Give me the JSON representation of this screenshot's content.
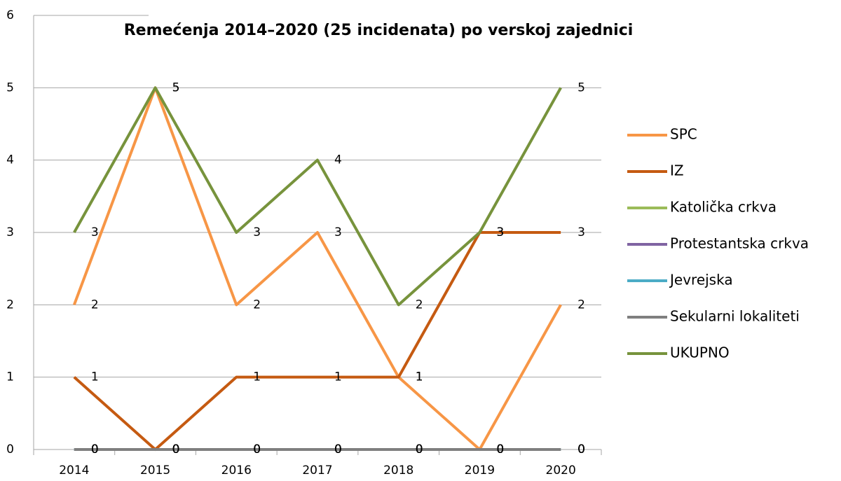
{
  "chart_data": {
    "type": "line",
    "title": "Remećenja 2014–2020 (25 incidenata) po verskoj zajednici",
    "categories": [
      "2014",
      "2015",
      "2016",
      "2017",
      "2018",
      "2019",
      "2020"
    ],
    "series": [
      {
        "name": "SPC",
        "color": "#f79646",
        "values": [
          2,
          5,
          2,
          3,
          1,
          0,
          2
        ]
      },
      {
        "name": "IZ",
        "color": "#c55a11",
        "values": [
          1,
          0,
          1,
          1,
          1,
          3,
          3
        ]
      },
      {
        "name": "Katolička crkva",
        "color": "#9bbb59",
        "values": [
          0,
          0,
          0,
          0,
          0,
          0,
          0
        ]
      },
      {
        "name": "Protestantska crkva",
        "color": "#8064a2",
        "values": [
          0,
          0,
          0,
          0,
          0,
          0,
          0
        ]
      },
      {
        "name": "Jevrejska",
        "color": "#4bacc6",
        "values": [
          0,
          0,
          0,
          0,
          0,
          0,
          0
        ]
      },
      {
        "name": "Sekularni lokaliteti",
        "color": "#7f7f7f",
        "values": [
          0,
          0,
          0,
          0,
          0,
          0,
          0
        ]
      },
      {
        "name": "UKUPNO",
        "color": "#77933c",
        "values": [
          3,
          5,
          3,
          4,
          2,
          3,
          5
        ]
      }
    ],
    "ylim": [
      0,
      6
    ],
    "yticks": [
      0,
      1,
      2,
      3,
      4,
      5,
      6
    ],
    "grid": true,
    "legend": "right"
  }
}
